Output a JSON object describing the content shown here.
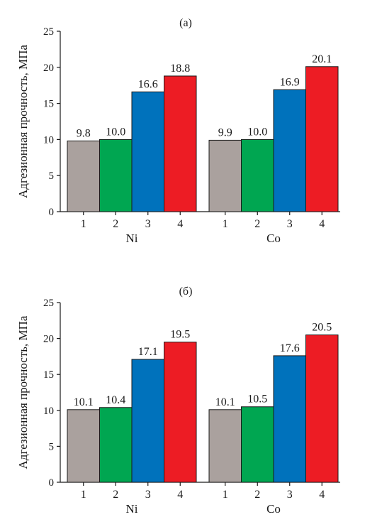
{
  "chart_data": [
    {
      "type": "bar",
      "title": "(a)",
      "ylabel": "Адгезионная прочность, МПа",
      "ylim": [
        0,
        25
      ],
      "yticks": [
        0,
        5,
        10,
        15,
        20,
        25
      ],
      "groups": [
        {
          "name": "Ni",
          "categories": [
            "1",
            "2",
            "3",
            "4"
          ],
          "values": [
            9.8,
            10.0,
            16.6,
            18.8
          ],
          "labels": [
            "9.8",
            "10.0",
            "16.6",
            "18.8"
          ]
        },
        {
          "name": "Co",
          "categories": [
            "1",
            "2",
            "3",
            "4"
          ],
          "values": [
            9.9,
            10.0,
            16.9,
            20.1
          ],
          "labels": [
            "9.9",
            "10.0",
            "16.9",
            "20.1"
          ]
        }
      ],
      "grid": false
    },
    {
      "type": "bar",
      "title": "(б)",
      "ylabel": "Адгезионная прочность, МПа",
      "ylim": [
        0,
        25
      ],
      "yticks": [
        0,
        5,
        10,
        15,
        20,
        25
      ],
      "groups": [
        {
          "name": "Ni",
          "categories": [
            "1",
            "2",
            "3",
            "4"
          ],
          "values": [
            10.1,
            10.4,
            17.1,
            19.5
          ],
          "labels": [
            "10.1",
            "10.4",
            "17.1",
            "19.5"
          ]
        },
        {
          "name": "Co",
          "categories": [
            "1",
            "2",
            "3",
            "4"
          ],
          "values": [
            10.1,
            10.5,
            17.6,
            20.5
          ],
          "labels": [
            "10.1",
            "10.5",
            "17.6",
            "20.5"
          ]
        }
      ],
      "grid": false
    }
  ],
  "colors": {
    "bar_1": "#aaa19e",
    "bar_2": "#00a651",
    "bar_3": "#0072bc",
    "bar_4": "#ed1c24",
    "axis": "#1a1a1a"
  }
}
